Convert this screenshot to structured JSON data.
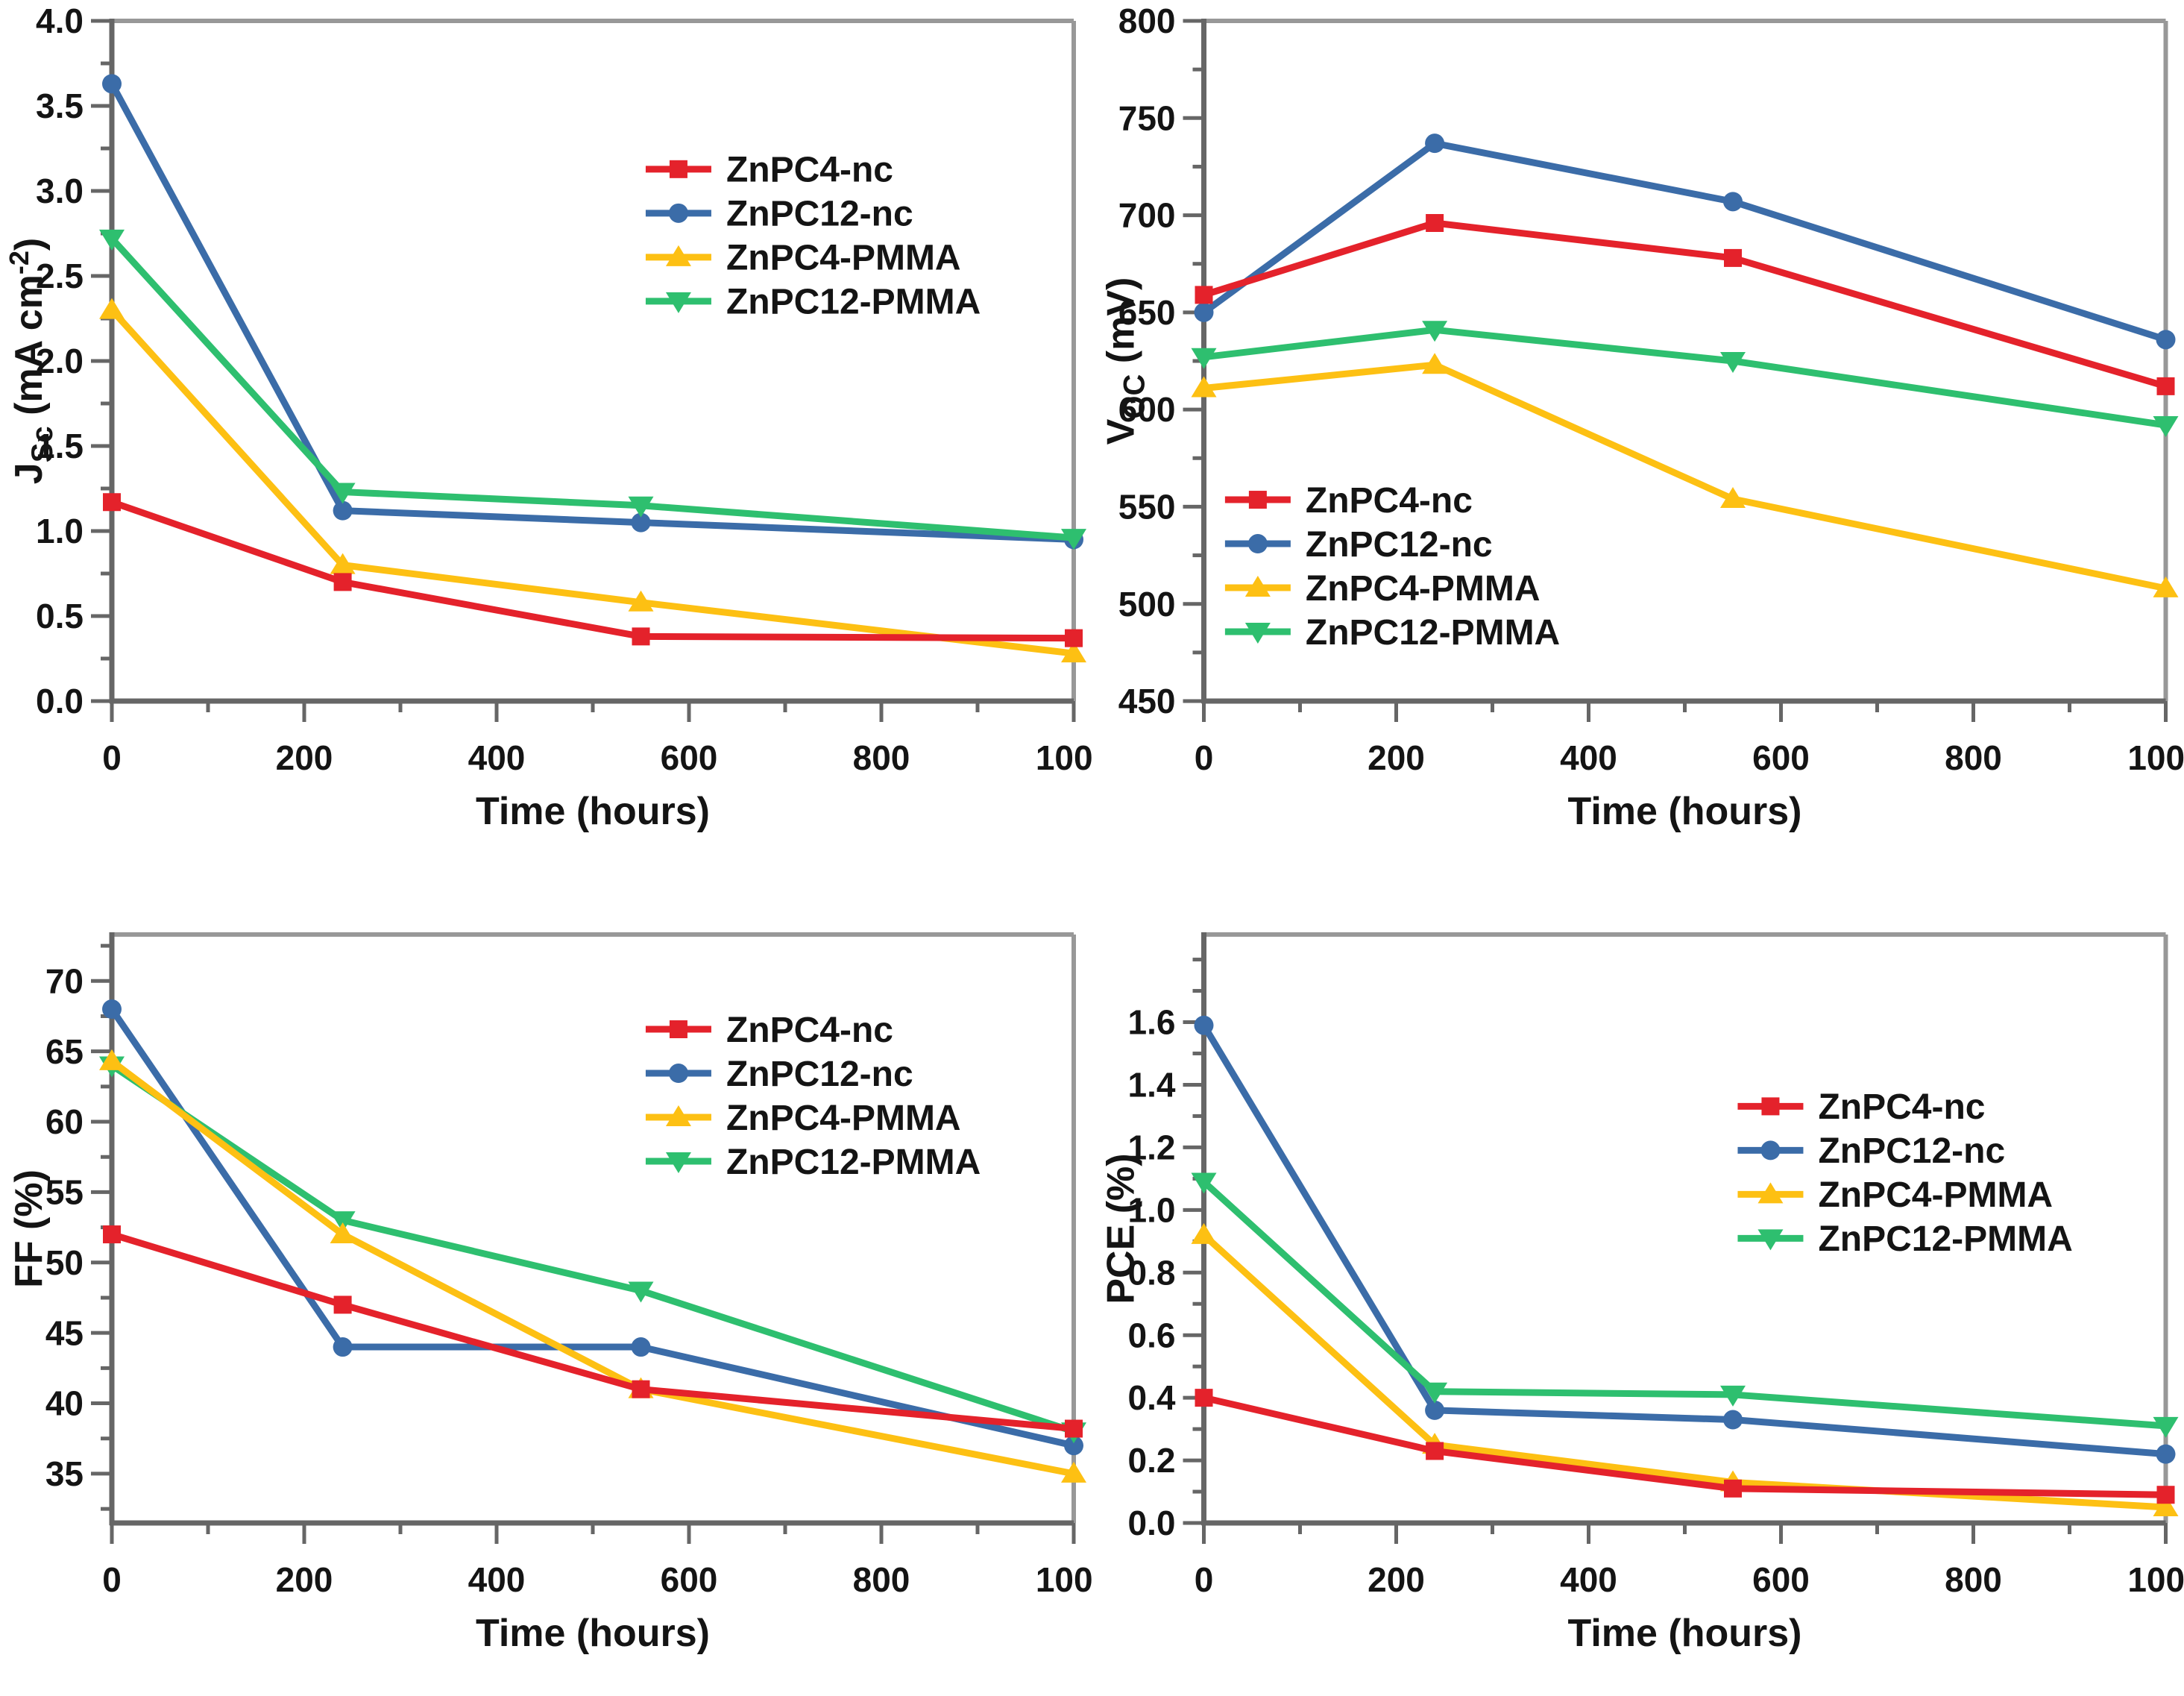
{
  "page": {
    "background": "#ffffff"
  },
  "colors": {
    "red": "#e4222b",
    "blue": "#3b6ca8",
    "yellow": "#fdc013",
    "green": "#2ebf6f",
    "axis": "#666666",
    "border": "#989898",
    "text": "#141414"
  },
  "series_labels": [
    "ZnPC4-nc",
    "ZnPC12-nc",
    "ZnPC4-PMMA",
    "ZnPC12-PMMA"
  ],
  "chart_data": [
    {
      "id": "jsc",
      "type": "line",
      "position": "top-left",
      "xlabel": "Time (hours)",
      "ylabel_parts": [
        {
          "t": "J"
        },
        {
          "t": "Sc",
          "style": "sub"
        },
        {
          "t": " (mA cm"
        },
        {
          "t": "-2",
          "style": "sup"
        },
        {
          "t": ")"
        }
      ],
      "x": [
        0,
        240,
        550,
        1000
      ],
      "xlim": [
        0,
        1000
      ],
      "x_major_step": 200,
      "x_minor_step": 100,
      "ylim": [
        0,
        4.0
      ],
      "y_major_step": 0.5,
      "y_minor_step": 0.25,
      "y_label_max": 4.0,
      "y_tick_decimals": 1,
      "grid": false,
      "legend": {
        "position": "top-right-inside",
        "fx": 0.555,
        "fy": 0.218
      },
      "series": [
        {
          "name": "ZnPC4-nc",
          "color_key": "red",
          "marker": "square",
          "values": [
            1.17,
            0.7,
            0.38,
            0.37
          ]
        },
        {
          "name": "ZnPC12-nc",
          "color_key": "blue",
          "marker": "circle",
          "values": [
            3.63,
            1.12,
            1.05,
            0.95
          ]
        },
        {
          "name": "ZnPC4-PMMA",
          "color_key": "yellow",
          "marker": "triangle-up",
          "values": [
            2.3,
            0.8,
            0.58,
            0.28
          ]
        },
        {
          "name": "ZnPC12-PMMA",
          "color_key": "green",
          "marker": "triangle-down",
          "values": [
            2.72,
            1.23,
            1.15,
            0.96
          ]
        }
      ]
    },
    {
      "id": "voc",
      "type": "line",
      "position": "top-right",
      "xlabel": "Time (hours)",
      "ylabel_parts": [
        {
          "t": "V"
        },
        {
          "t": "OC",
          "style": "sub"
        },
        {
          "t": " (mV)"
        }
      ],
      "x": [
        0,
        240,
        550,
        1000
      ],
      "xlim": [
        0,
        1000
      ],
      "x_major_step": 200,
      "x_minor_step": 100,
      "ylim": [
        450,
        800
      ],
      "y_major_step": 50,
      "y_minor_step": 25,
      "y_label_max": 800,
      "y_tick_decimals": 0,
      "grid": false,
      "legend": {
        "position": "lower-left-inside",
        "fx": 0.022,
        "fy": 0.704
      },
      "series": [
        {
          "name": "ZnPC4-nc",
          "color_key": "red",
          "marker": "square",
          "values": [
            659,
            696,
            678,
            612
          ]
        },
        {
          "name": "ZnPC12-nc",
          "color_key": "blue",
          "marker": "circle",
          "values": [
            650,
            737,
            707,
            636
          ]
        },
        {
          "name": "ZnPC4-PMMA",
          "color_key": "yellow",
          "marker": "triangle-up",
          "values": [
            611,
            623,
            554,
            508
          ]
        },
        {
          "name": "ZnPC12-PMMA",
          "color_key": "green",
          "marker": "triangle-down",
          "values": [
            627,
            641,
            625,
            592
          ]
        }
      ]
    },
    {
      "id": "ff",
      "type": "line",
      "position": "bottom-left",
      "xlabel": "Time (hours)",
      "ylabel_parts": [
        {
          "t": "FF (%)"
        }
      ],
      "x": [
        0,
        240,
        550,
        1000
      ],
      "xlim": [
        0,
        1000
      ],
      "x_major_step": 200,
      "x_minor_step": 100,
      "ylim": [
        31.5,
        73.3
      ],
      "y_major_step": 5,
      "y_minor_step": 2.5,
      "y_label_max": 70,
      "y_tick_decimals": 0,
      "grid": false,
      "legend": {
        "position": "top-right-inside",
        "fx": 0.555,
        "fy": 0.161
      },
      "series": [
        {
          "name": "ZnPC4-nc",
          "color_key": "red",
          "marker": "square",
          "values": [
            52,
            47,
            41,
            38.2
          ]
        },
        {
          "name": "ZnPC12-nc",
          "color_key": "blue",
          "marker": "circle",
          "values": [
            68,
            44,
            44,
            37
          ]
        },
        {
          "name": "ZnPC4-PMMA",
          "color_key": "yellow",
          "marker": "triangle-up",
          "values": [
            64.3,
            52,
            41,
            35
          ]
        },
        {
          "name": "ZnPC12-PMMA",
          "color_key": "green",
          "marker": "triangle-down",
          "values": [
            64,
            53,
            48,
            38
          ]
        }
      ]
    },
    {
      "id": "pce",
      "type": "line",
      "position": "bottom-right",
      "xlabel": "Time (hours)",
      "ylabel_parts": [
        {
          "t": "PCE (%)"
        }
      ],
      "x": [
        0,
        240,
        550,
        1000
      ],
      "xlim": [
        0,
        1000
      ],
      "x_major_step": 200,
      "x_minor_step": 100,
      "ylim": [
        0,
        1.88
      ],
      "y_major_step": 0.2,
      "y_minor_step": 0.1,
      "y_label_max": 1.6,
      "y_tick_decimals": 1,
      "grid": false,
      "legend": {
        "position": "mid-right-inside",
        "fx": 0.555,
        "fy": 0.292
      },
      "series": [
        {
          "name": "ZnPC4-nc",
          "color_key": "red",
          "marker": "square",
          "values": [
            0.4,
            0.23,
            0.11,
            0.09
          ]
        },
        {
          "name": "ZnPC12-nc",
          "color_key": "blue",
          "marker": "circle",
          "values": [
            1.59,
            0.36,
            0.33,
            0.22
          ]
        },
        {
          "name": "ZnPC4-PMMA",
          "color_key": "yellow",
          "marker": "triangle-up",
          "values": [
            0.92,
            0.25,
            0.13,
            0.05
          ]
        },
        {
          "name": "ZnPC12-PMMA",
          "color_key": "green",
          "marker": "triangle-down",
          "values": [
            1.09,
            0.42,
            0.41,
            0.31
          ]
        }
      ]
    }
  ]
}
